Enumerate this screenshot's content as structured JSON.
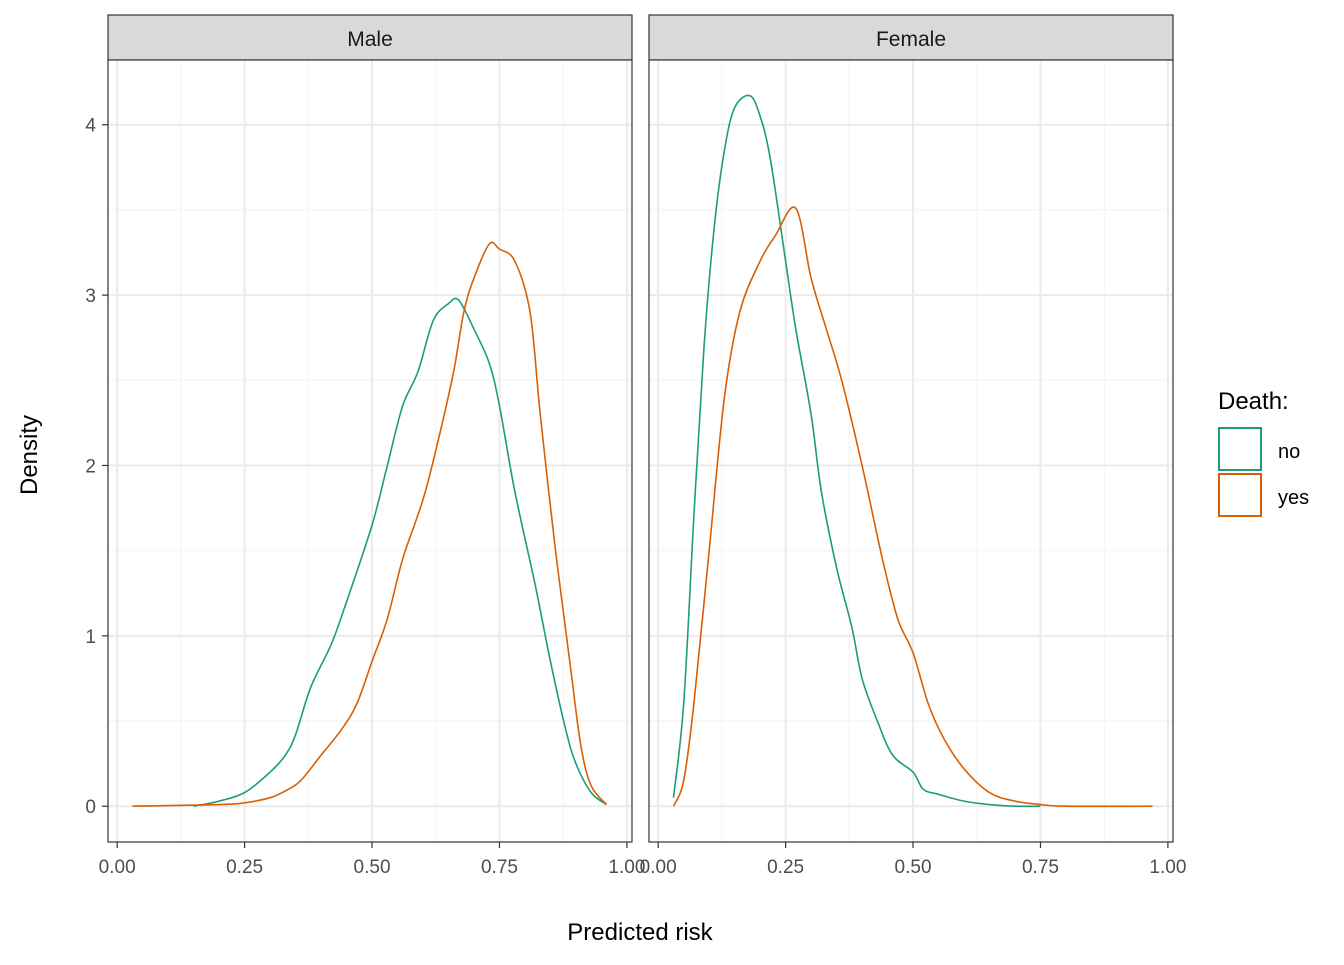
{
  "chart_data": {
    "type": "line",
    "subtype": "density",
    "xlabel": "Predicted risk",
    "ylabel": "Density",
    "xlim": [
      -0.018,
      1.01
    ],
    "ylim": [
      -0.21,
      4.38
    ],
    "xticks": [
      "0.00",
      "0.25",
      "0.50",
      "0.75",
      "1.00"
    ],
    "xtick_values": [
      0,
      0.25,
      0.5,
      0.75,
      1.0
    ],
    "yticks": [
      "0",
      "1",
      "2",
      "3",
      "4"
    ],
    "ytick_values": [
      0,
      1,
      2,
      3,
      4
    ],
    "grid": true,
    "legend": {
      "title": "Death:",
      "placement": "right",
      "entries": [
        {
          "label": "no",
          "color": "#1B9E77"
        },
        {
          "label": "yes",
          "color": "#D95F02"
        }
      ]
    },
    "panels": [
      {
        "label": "Male",
        "series": [
          {
            "name": "no",
            "color": "#1B9E77",
            "x": [
              0.15,
              0.2,
              0.25,
              0.3,
              0.33,
              0.35,
              0.38,
              0.42,
              0.45,
              0.5,
              0.53,
              0.56,
              0.59,
              0.62,
              0.65,
              0.67,
              0.7,
              0.73,
              0.75,
              0.78,
              0.82,
              0.85,
              0.88,
              0.9,
              0.93,
              0.96
            ],
            "y": [
              0,
              0.03,
              0.08,
              0.2,
              0.3,
              0.42,
              0.7,
              0.95,
              1.2,
              1.65,
              2.0,
              2.35,
              2.55,
              2.85,
              2.95,
              2.97,
              2.8,
              2.6,
              2.35,
              1.85,
              1.3,
              0.85,
              0.45,
              0.25,
              0.08,
              0.01
            ]
          },
          {
            "name": "yes",
            "color": "#D95F02",
            "x": [
              0.03,
              0.2,
              0.25,
              0.3,
              0.33,
              0.36,
              0.4,
              0.44,
              0.47,
              0.5,
              0.53,
              0.56,
              0.6,
              0.63,
              0.66,
              0.68,
              0.7,
              0.73,
              0.75,
              0.78,
              0.81,
              0.83,
              0.86,
              0.89,
              0.91,
              0.93,
              0.96
            ],
            "y": [
              0,
              0.01,
              0.02,
              0.05,
              0.09,
              0.15,
              0.3,
              0.45,
              0.6,
              0.85,
              1.1,
              1.45,
              1.8,
              2.15,
              2.55,
              2.9,
              3.1,
              3.3,
              3.27,
              3.2,
              2.9,
              2.3,
              1.5,
              0.8,
              0.35,
              0.12,
              0.01
            ]
          }
        ]
      },
      {
        "label": "Female",
        "series": [
          {
            "name": "no",
            "color": "#1B9E77",
            "x": [
              0.03,
              0.05,
              0.07,
              0.09,
              0.11,
              0.13,
              0.15,
              0.18,
              0.2,
              0.22,
              0.25,
              0.27,
              0.3,
              0.32,
              0.35,
              0.38,
              0.4,
              0.43,
              0.46,
              0.5,
              0.52,
              0.55,
              0.6,
              0.65,
              0.7,
              0.75
            ],
            "y": [
              0.05,
              0.6,
              1.7,
              2.7,
              3.4,
              3.85,
              4.1,
              4.17,
              4.05,
              3.8,
              3.2,
              2.8,
              2.3,
              1.85,
              1.4,
              1.05,
              0.75,
              0.5,
              0.3,
              0.2,
              0.1,
              0.07,
              0.03,
              0.01,
              0,
              0
            ]
          },
          {
            "name": "yes",
            "color": "#D95F02",
            "x": [
              0.03,
              0.05,
              0.07,
              0.1,
              0.13,
              0.16,
              0.2,
              0.23,
              0.27,
              0.3,
              0.33,
              0.36,
              0.4,
              0.44,
              0.47,
              0.5,
              0.53,
              0.56,
              0.6,
              0.65,
              0.7,
              0.75,
              0.8,
              0.97
            ],
            "y": [
              0,
              0.15,
              0.6,
              1.5,
              2.4,
              2.9,
              3.2,
              3.35,
              3.51,
              3.1,
              2.8,
              2.5,
              2.0,
              1.45,
              1.1,
              0.9,
              0.6,
              0.4,
              0.22,
              0.08,
              0.03,
              0.01,
              0,
              0
            ]
          }
        ]
      }
    ]
  }
}
